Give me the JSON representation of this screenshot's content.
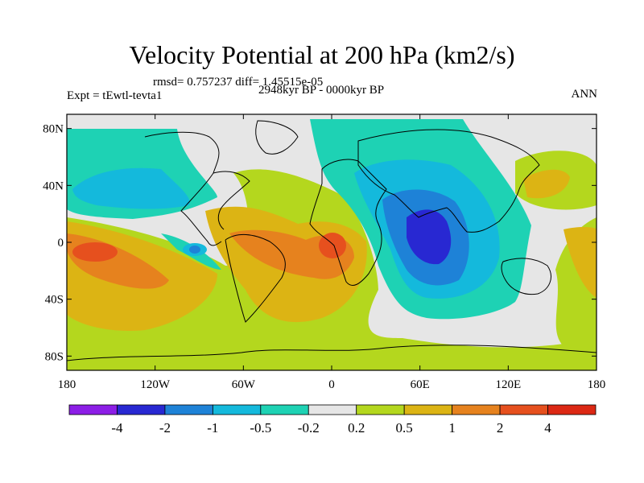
{
  "title": "Velocity Potential at 200 hPa (km2/s)",
  "stats": {
    "rmsd_text": "rmsd= 0.757237 diff= 1.45515e-05"
  },
  "experiment": "Expt = tEwtl-tevta1",
  "period": "2948kyr BP - 0000kyr BP",
  "season": "ANN",
  "chart_data": {
    "type": "filled-contour-map",
    "projection": "cylindrical-equidistant",
    "field": "Velocity Potential at 200 hPa",
    "units": "km2/s",
    "lon_range": [
      -180,
      180
    ],
    "lat_range": [
      -90,
      90
    ],
    "x_ticks": [
      {
        "value": -180,
        "label": "180"
      },
      {
        "value": -120,
        "label": "120W"
      },
      {
        "value": -60,
        "label": "60W"
      },
      {
        "value": 0,
        "label": "0"
      },
      {
        "value": 60,
        "label": "60E"
      },
      {
        "value": 120,
        "label": "120E"
      },
      {
        "value": 180,
        "label": "180"
      }
    ],
    "y_ticks": [
      {
        "value": 80,
        "label": "80N"
      },
      {
        "value": 40,
        "label": "40N"
      },
      {
        "value": 0,
        "label": "0"
      },
      {
        "value": -40,
        "label": "40S"
      },
      {
        "value": -80,
        "label": "80S"
      }
    ],
    "levels": [
      -4,
      -2,
      -1,
      -0.5,
      -0.2,
      0.2,
      0.5,
      1,
      2,
      4
    ],
    "level_labels": [
      "-4",
      "-2",
      "-1",
      "-0.5",
      "-0.2",
      "0.2",
      "0.5",
      "1",
      "2",
      "4"
    ],
    "colors": [
      "#8c1ee6",
      "#2828d2",
      "#1e82d7",
      "#14b9dc",
      "#1ed2b4",
      "#e6e6e6",
      "#b4d71e",
      "#dcb414",
      "#e6821e",
      "#e6501e",
      "#dc2814"
    ],
    "features": [
      {
        "name": "Indian Ocean minimum",
        "lon": 70,
        "lat": 0,
        "min": -4
      },
      {
        "name": "Central Pacific maximum",
        "lon": -155,
        "lat": -15,
        "max": 4
      },
      {
        "name": "South Atlantic maximum",
        "lon": 0,
        "lat": -10,
        "max": 4
      }
    ]
  }
}
